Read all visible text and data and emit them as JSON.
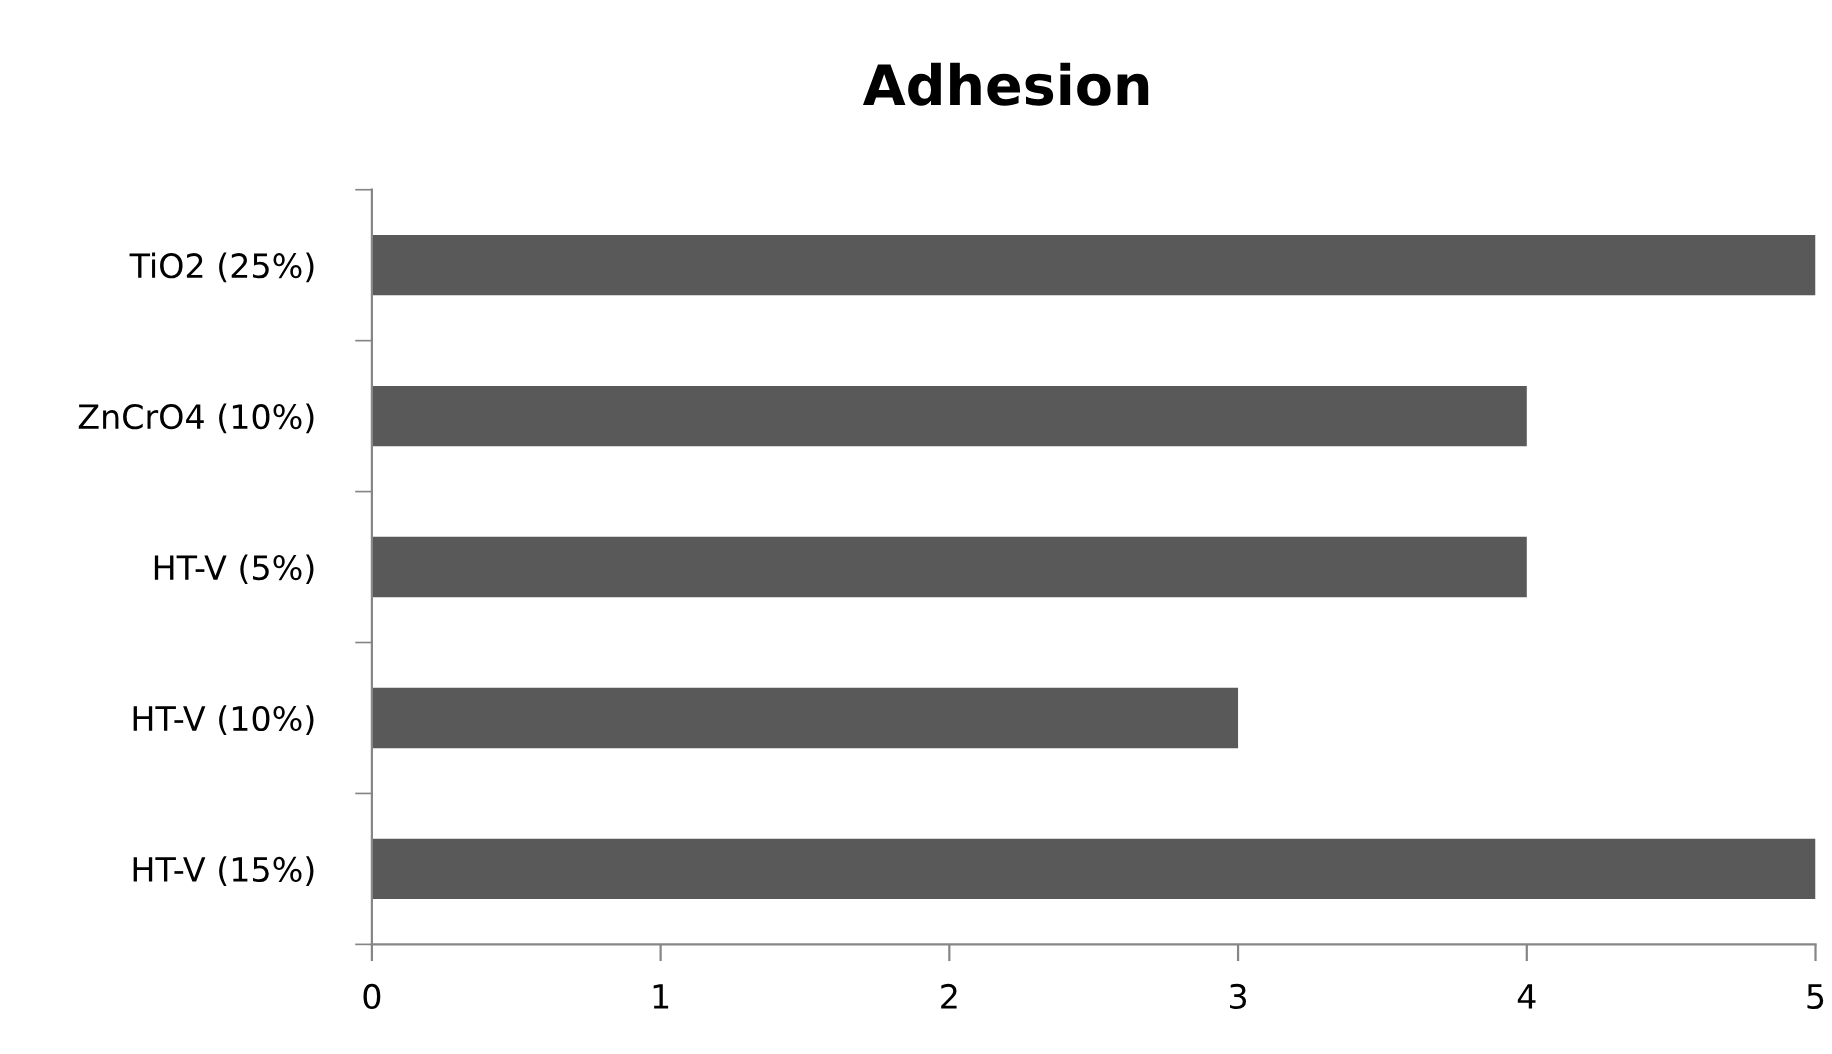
{
  "chart_data": {
    "type": "bar",
    "title": "Adhesion",
    "orientation": "horizontal",
    "categories": [
      "TiO2 (25%)",
      "ZnCrO4 (10%)",
      "HT-V (5%)",
      "HT-V (10%)",
      "HT-V (15%)"
    ],
    "values": [
      5,
      4,
      4,
      3,
      5
    ],
    "color": "#595959",
    "xlim": [
      0,
      5
    ],
    "xticks": [
      0,
      1,
      2,
      3,
      4,
      5
    ],
    "grid": false,
    "legend": false
  }
}
